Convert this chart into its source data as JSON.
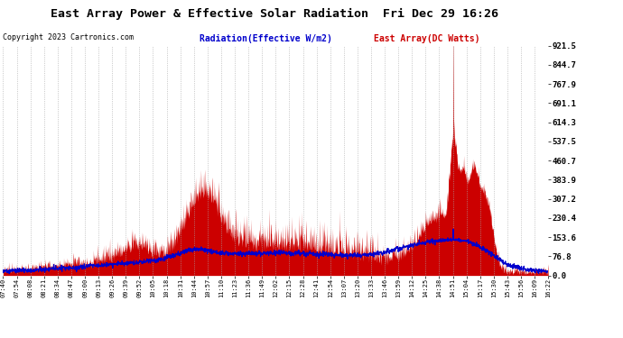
{
  "title": "East Array Power & Effective Solar Radiation  Fri Dec 29 16:26",
  "copyright": "Copyright 2023 Cartronics.com",
  "legend_radiation": "Radiation(Effective W/m2)",
  "legend_east": "East Array(DC Watts)",
  "y_ticks": [
    0.0,
    76.8,
    153.6,
    230.4,
    307.2,
    383.9,
    460.7,
    537.5,
    614.3,
    691.1,
    767.9,
    844.7,
    921.5
  ],
  "y_max": 921.5,
  "y_min": 0.0,
  "background_color": "#ffffff",
  "plot_bg_color": "#ffffff",
  "grid_color": "#aaaaaa",
  "radiation_color": "#0000cc",
  "east_array_color": "#cc0000",
  "fill_color": "#cc0000",
  "title_color": "#000000",
  "copyright_color": "#000000",
  "x_labels": [
    "07:40",
    "07:54",
    "08:08",
    "08:21",
    "08:34",
    "08:47",
    "09:00",
    "09:13",
    "09:26",
    "09:39",
    "09:52",
    "10:05",
    "10:18",
    "10:31",
    "10:44",
    "10:57",
    "11:10",
    "11:23",
    "11:36",
    "11:49",
    "12:02",
    "12:15",
    "12:28",
    "12:41",
    "12:54",
    "13:07",
    "13:20",
    "13:33",
    "13:46",
    "13:59",
    "14:12",
    "14:25",
    "14:38",
    "14:51",
    "15:04",
    "15:17",
    "15:30",
    "15:43",
    "15:56",
    "16:09",
    "16:22"
  ]
}
